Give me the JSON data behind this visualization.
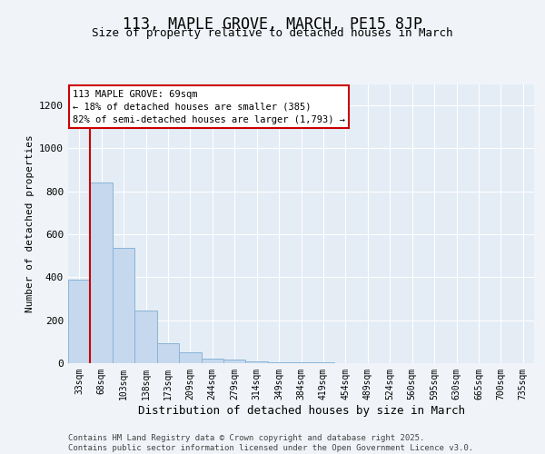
{
  "title": "113, MAPLE GROVE, MARCH, PE15 8JP",
  "subtitle": "Size of property relative to detached houses in March",
  "xlabel": "Distribution of detached houses by size in March",
  "ylabel": "Number of detached properties",
  "bar_color": "#c5d8ee",
  "bar_edge_color": "#8ab4d8",
  "vline_color": "#cc0000",
  "vline_x_index": 1,
  "annotation_text": "113 MAPLE GROVE: 69sqm\n← 18% of detached houses are smaller (385)\n82% of semi-detached houses are larger (1,793) →",
  "annotation_box_color": "white",
  "annotation_box_edge": "#cc0000",
  "footer": "Contains HM Land Registry data © Crown copyright and database right 2025.\nContains public sector information licensed under the Open Government Licence v3.0.",
  "categories": [
    "33sqm",
    "68sqm",
    "103sqm",
    "138sqm",
    "173sqm",
    "209sqm",
    "244sqm",
    "279sqm",
    "314sqm",
    "349sqm",
    "384sqm",
    "419sqm",
    "454sqm",
    "489sqm",
    "524sqm",
    "560sqm",
    "595sqm",
    "630sqm",
    "665sqm",
    "700sqm",
    "735sqm"
  ],
  "values": [
    390,
    840,
    535,
    245,
    95,
    50,
    20,
    15,
    10,
    5,
    3,
    5,
    0,
    0,
    0,
    0,
    0,
    0,
    0,
    0,
    0
  ],
  "ylim": [
    0,
    1300
  ],
  "yticks": [
    0,
    200,
    400,
    600,
    800,
    1000,
    1200
  ],
  "fig_bg": "#f0f4f8",
  "plot_bg": "#e4edf5",
  "grid_color": "white",
  "title_fontsize": 12,
  "subtitle_fontsize": 9,
  "tick_fontsize": 7,
  "ylabel_fontsize": 8,
  "xlabel_fontsize": 9,
  "footer_fontsize": 6.5
}
